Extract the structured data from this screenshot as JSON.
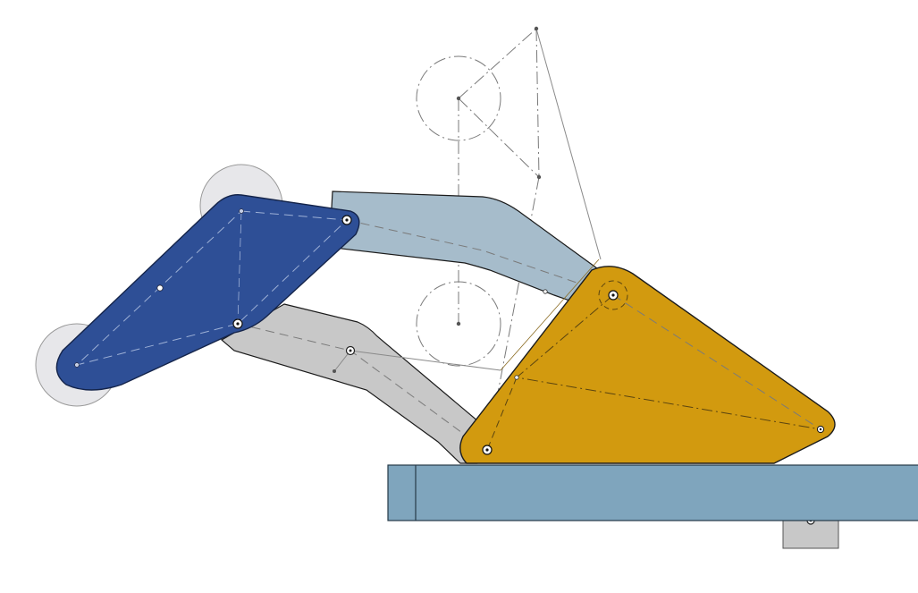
{
  "scene": {
    "type": "cad-linkage-sketch",
    "background": "#ffffff",
    "parts": [
      {
        "name": "left-rocker-plate",
        "color": "#2e4f96"
      },
      {
        "name": "upper-coupler-link",
        "color": "#a6bccb"
      },
      {
        "name": "lower-coupler-link",
        "color": "#c8c8c8"
      },
      {
        "name": "triangular-output-plate",
        "color": "#d29a0f"
      },
      {
        "name": "ground-base-bar",
        "color": "#7fa5bd"
      },
      {
        "name": "mount-block",
        "color": "#c8c8c8"
      }
    ],
    "roller_color": "#e3e3e6",
    "construction_line_color": "#7a7a7a",
    "outline_color": "#1b1b1b"
  }
}
